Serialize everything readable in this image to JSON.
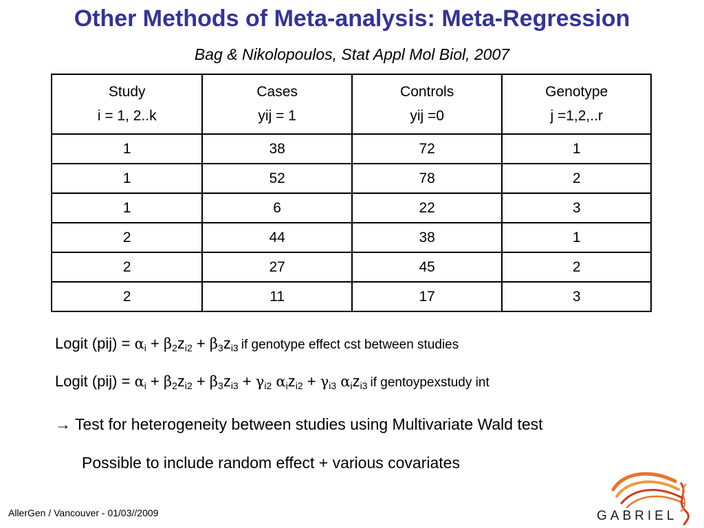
{
  "title": "Other Methods of Meta-analysis: Meta-Regression",
  "subtitle": "Bag & Nikolopoulos, Stat Appl Mol Biol, 2007",
  "table": {
    "headers": [
      {
        "line1": "Study",
        "line2": "i = 1, 2..k"
      },
      {
        "line1": "Cases",
        "line2": "yij = 1"
      },
      {
        "line1": "Controls",
        "line2": "yij =0"
      },
      {
        "line1": "Genotype",
        "line2": "j =1,2,..r"
      }
    ],
    "rows": [
      [
        "1",
        "38",
        "72",
        "1"
      ],
      [
        "1",
        "52",
        "78",
        "2"
      ],
      [
        "1",
        "6",
        "22",
        "3"
      ],
      [
        "2",
        "44",
        "38",
        "1"
      ],
      [
        "2",
        "27",
        "45",
        "2"
      ],
      [
        "2",
        "11",
        "17",
        "3"
      ]
    ]
  },
  "equations": {
    "eq1": {
      "lhs": "Logit (pij)",
      "eq": " = ",
      "alpha": "α",
      "alpha_sub": "i",
      "plus": " + ",
      "beta": "β",
      "b2": "2",
      "z2": "z",
      "z2_sub": "i2",
      "b3": "3",
      "z3": "z",
      "z3_sub": "i3",
      "condition": "if genotype effect cst between studies"
    },
    "eq2": {
      "lhs": "Logit (pij)",
      "eq": " = ",
      "alpha": "α",
      "alpha_sub": "i",
      "plus": " + ",
      "beta": "β",
      "gamma": "γ",
      "b2": "2",
      "z2": "z",
      "z2_sub": "i2",
      "b3": "3",
      "z3": "z",
      "z3_sub": "i3",
      "g2_sub": "i2",
      "g3_sub": "i3",
      "condition": "if gentoypexstudy int"
    }
  },
  "text_lines": {
    "line1": "→ Test for heterogeneity between studies using Multivariate Wald test",
    "line2": "Possible to include random effect + various covariates"
  },
  "footer": "AllerGen / Vancouver - 01/03//2009",
  "logo": {
    "text": "GABRIEL",
    "icon": "dna-swirl-icon"
  },
  "colors": {
    "title": "#333399",
    "logo_orange": "#e8742a",
    "logo_red": "#d23a1f"
  }
}
